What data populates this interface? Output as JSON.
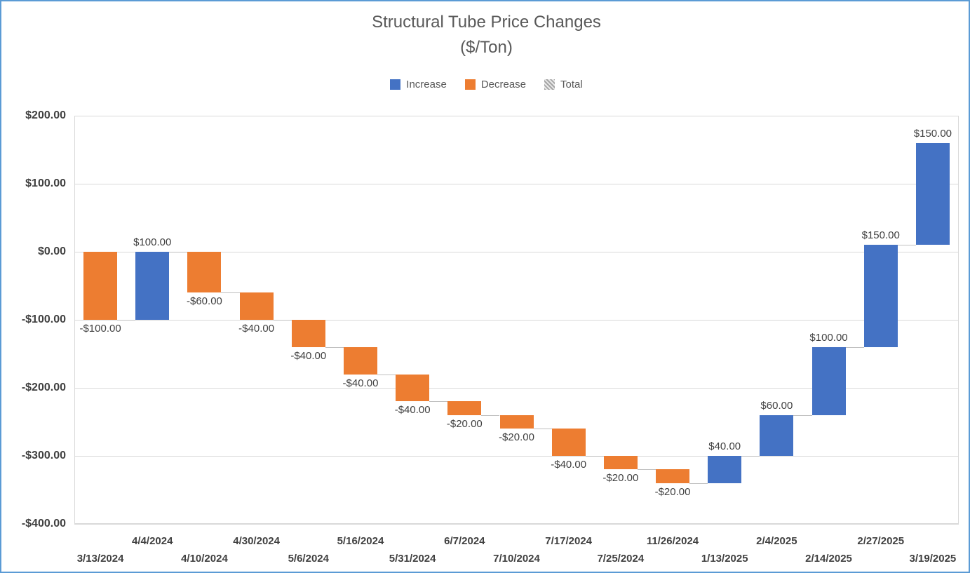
{
  "title": {
    "line1": "Structural Tube Price Changes",
    "line2": "($/Ton)"
  },
  "legend": [
    {
      "label": "Increase",
      "color": "#4472C4",
      "swatch": "solid"
    },
    {
      "label": "Decrease",
      "color": "#ED7D31",
      "swatch": "solid"
    },
    {
      "label": "Total",
      "color": "#A5A5A5",
      "swatch": "hatch"
    }
  ],
  "y_axis": {
    "tick_labels": [
      "$200.00",
      "$100.00",
      "$0.00",
      "-$100.00",
      "-$200.00",
      "-$300.00",
      "-$400.00"
    ],
    "tick_values": [
      200,
      100,
      0,
      -100,
      -200,
      -300,
      -400
    ],
    "min": -400,
    "max": 200
  },
  "chart_data": {
    "type": "bar",
    "subtype": "waterfall",
    "title": "Structural Tube Price Changes ($/Ton)",
    "categories": [
      "3/13/2024",
      "4/4/2024",
      "4/10/2024",
      "4/30/2024",
      "5/6/2024",
      "5/16/2024",
      "5/31/2024",
      "6/7/2024",
      "7/10/2024",
      "7/17/2024",
      "7/25/2024",
      "11/26/2024",
      "1/13/2025",
      "2/4/2025",
      "2/14/2025",
      "2/27/2025",
      "3/19/2025"
    ],
    "values": [
      -100,
      100,
      -60,
      -40,
      -40,
      -40,
      -40,
      -20,
      -20,
      -40,
      -20,
      -20,
      40,
      60,
      100,
      150,
      150
    ],
    "data_labels": [
      "-$100.00",
      "$100.00",
      "-$60.00",
      "-$40.00",
      "-$40.00",
      "-$40.00",
      "-$40.00",
      "-$20.00",
      "-$20.00",
      "-$40.00",
      "-$20.00",
      "-$20.00",
      "$40.00",
      "$60.00",
      "$100.00",
      "$150.00",
      "$150.00"
    ],
    "cumulative": [
      -100,
      0,
      -60,
      -100,
      -140,
      -180,
      -220,
      -240,
      -260,
      -300,
      -320,
      -340,
      -300,
      -240,
      -140,
      10,
      160
    ],
    "cumulative_start": 0,
    "xlabel": "",
    "ylabel": "",
    "ylim": [
      -400,
      200
    ],
    "grid": true,
    "legend_position": "top",
    "colors": {
      "increase": "#4472C4",
      "decrease": "#ED7D31",
      "total": "#A5A5A5",
      "gridline": "#D9D9D9",
      "connector": "#BFBFBF",
      "frame_border": "#5B9BD5",
      "axis_text": "#404040",
      "title_text": "#595959"
    }
  }
}
